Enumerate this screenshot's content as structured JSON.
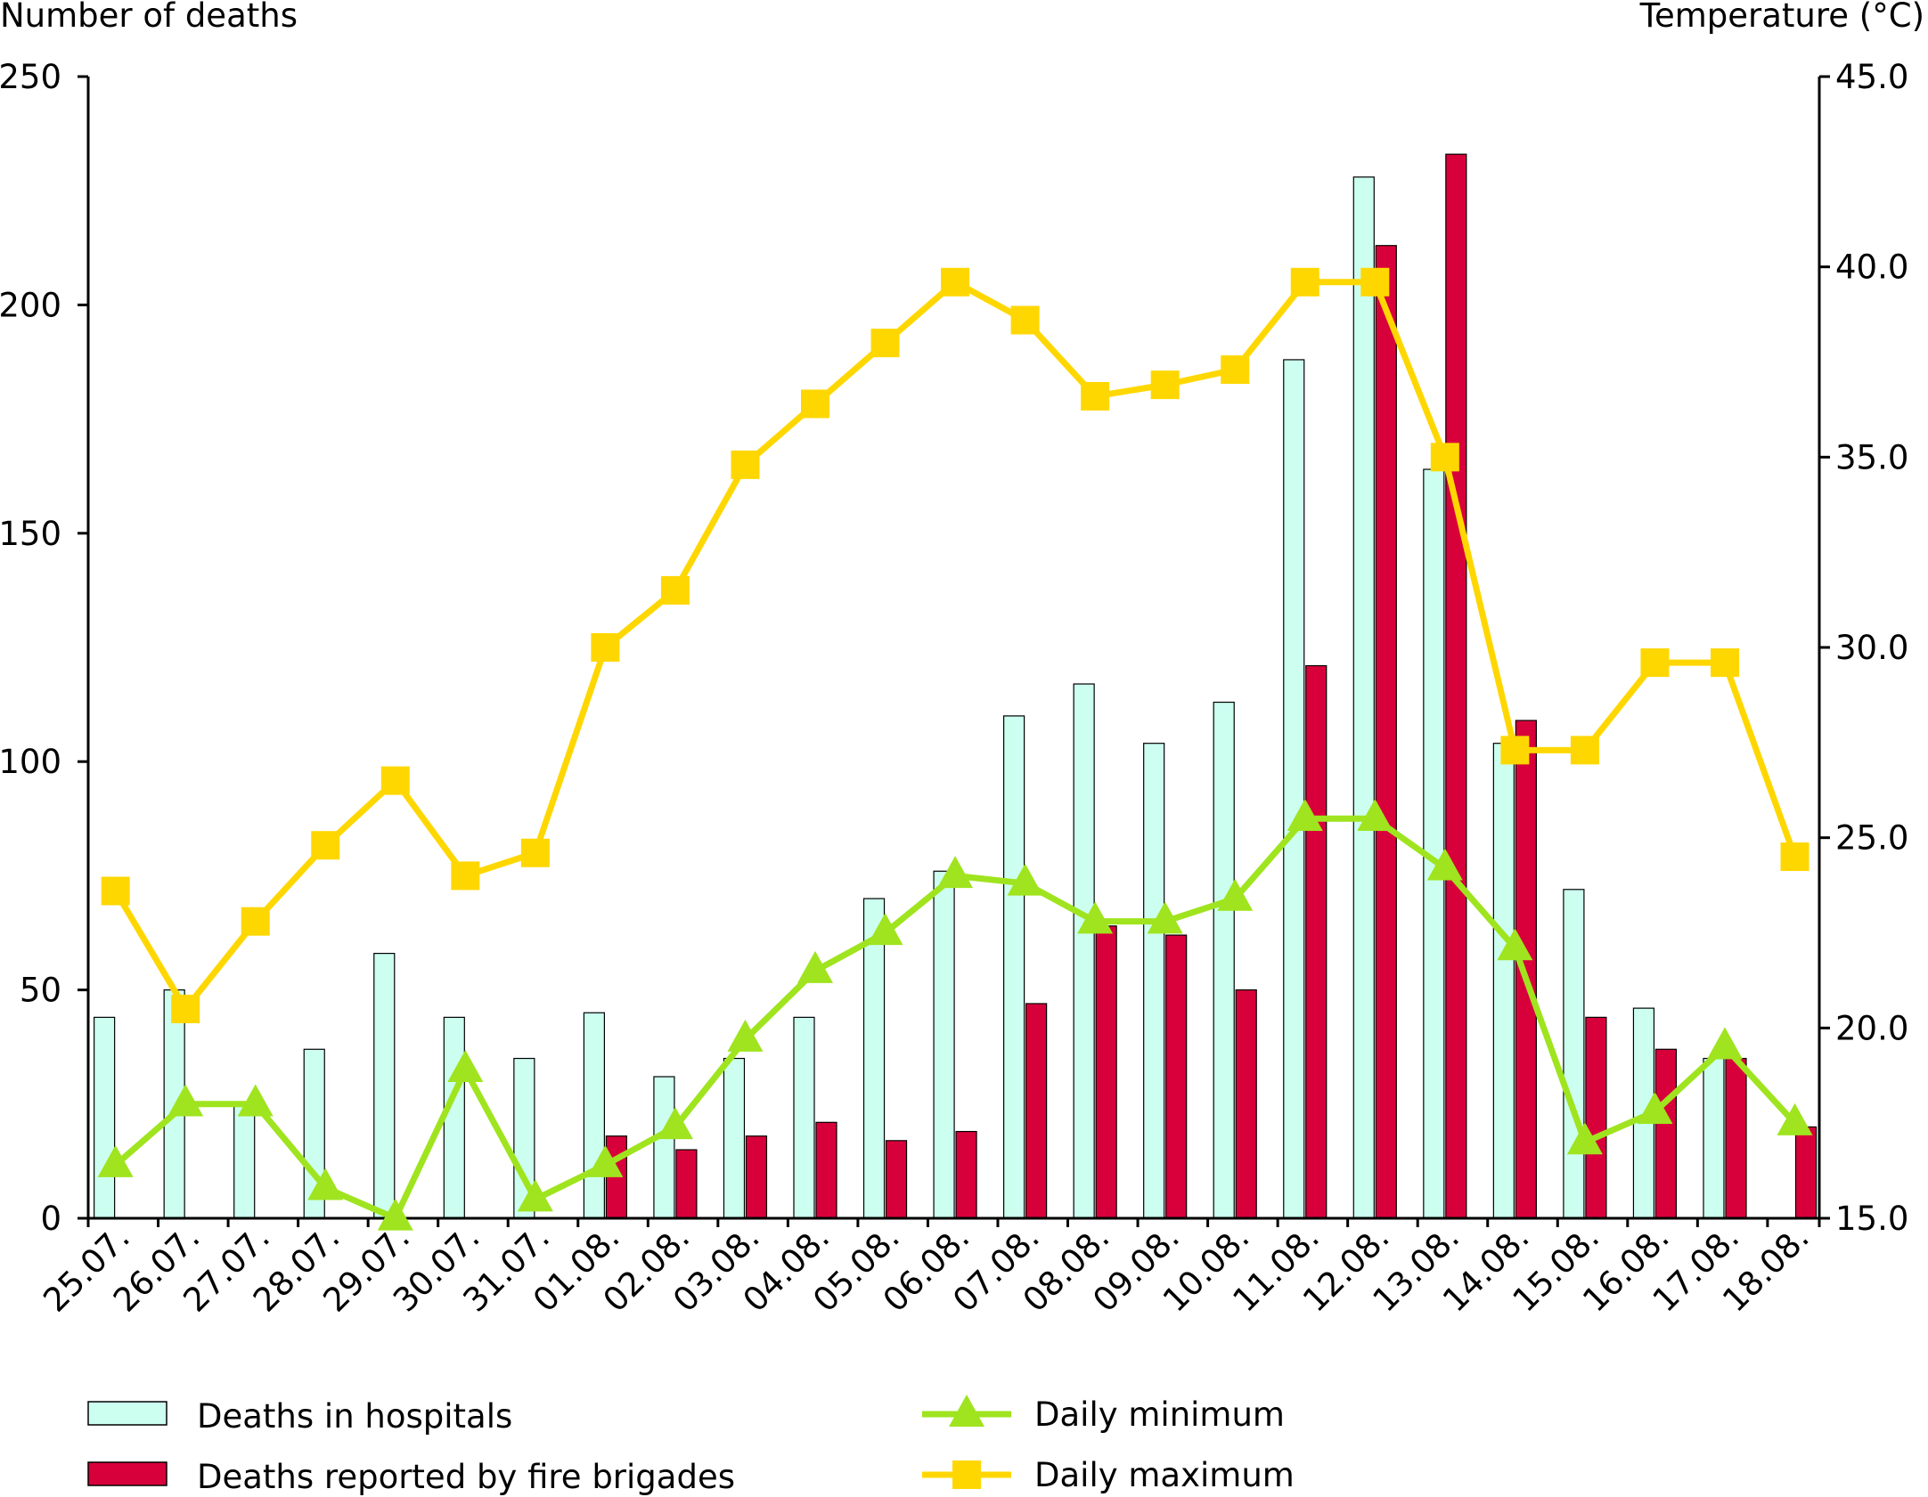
{
  "chart_data": {
    "type": "bar",
    "ylabel_left": "Number of deaths",
    "ylabel_right": "Temperature (°C)",
    "ylim_left": [
      0,
      250
    ],
    "ylim_right": [
      15.0,
      45.0
    ],
    "yticks_left": [
      "0",
      "50",
      "100",
      "150",
      "200",
      "250"
    ],
    "yticks_right": [
      "15.0",
      "20.0",
      "25.0",
      "30.0",
      "35.0",
      "40.0",
      "45.0"
    ],
    "grid": false,
    "legend_position": "bottom",
    "categories": [
      "25.07.",
      "26.07.",
      "27.07.",
      "28.07.",
      "29.07.",
      "30.07.",
      "31.07.",
      "01.08.",
      "02.08.",
      "03.08.",
      "04.08.",
      "05.08.",
      "06.08.",
      "07.08.",
      "08.08.",
      "09.08.",
      "10.08.",
      "11.08.",
      "12.08.",
      "13.08.",
      "14.08.",
      "15.08.",
      "16.08.",
      "17.08.",
      "18.08."
    ],
    "series": [
      {
        "name": "Deaths in hospitals",
        "kind": "bar",
        "axis": "left",
        "color": "#ccfff0",
        "values": [
          44,
          50,
          25,
          37,
          58,
          44,
          35,
          45,
          31,
          35,
          44,
          70,
          76,
          110,
          117,
          104,
          113,
          188,
          228,
          164,
          104,
          72,
          46,
          35,
          null
        ]
      },
      {
        "name": "Deaths reported by fire brigades",
        "kind": "bar",
        "axis": "left",
        "color": "#d8003a",
        "values": [
          null,
          null,
          null,
          null,
          null,
          null,
          null,
          18,
          15,
          18,
          21,
          17,
          19,
          47,
          64,
          62,
          50,
          121,
          213,
          233,
          109,
          44,
          37,
          35,
          20
        ]
      },
      {
        "name": "Daily minimum",
        "kind": "line",
        "axis": "right",
        "marker": "triangle",
        "color": "#9fe41e",
        "values": [
          16.4,
          18.0,
          18.0,
          15.8,
          15.0,
          18.9,
          15.5,
          16.4,
          17.4,
          19.7,
          21.5,
          22.5,
          24.0,
          23.8,
          22.8,
          22.8,
          23.4,
          25.5,
          25.5,
          24.2,
          22.1,
          17.0,
          17.8,
          19.5,
          17.5
        ]
      },
      {
        "name": "Daily maximum",
        "kind": "line",
        "axis": "right",
        "marker": "square",
        "color": "#ffd700",
        "values": [
          23.6,
          20.5,
          22.8,
          24.8,
          26.5,
          24.0,
          24.6,
          30.0,
          31.5,
          34.8,
          36.4,
          38.0,
          39.6,
          38.6,
          36.6,
          36.9,
          37.3,
          39.6,
          39.6,
          35.0,
          27.3,
          27.3,
          29.6,
          29.6,
          24.5
        ]
      }
    ]
  }
}
